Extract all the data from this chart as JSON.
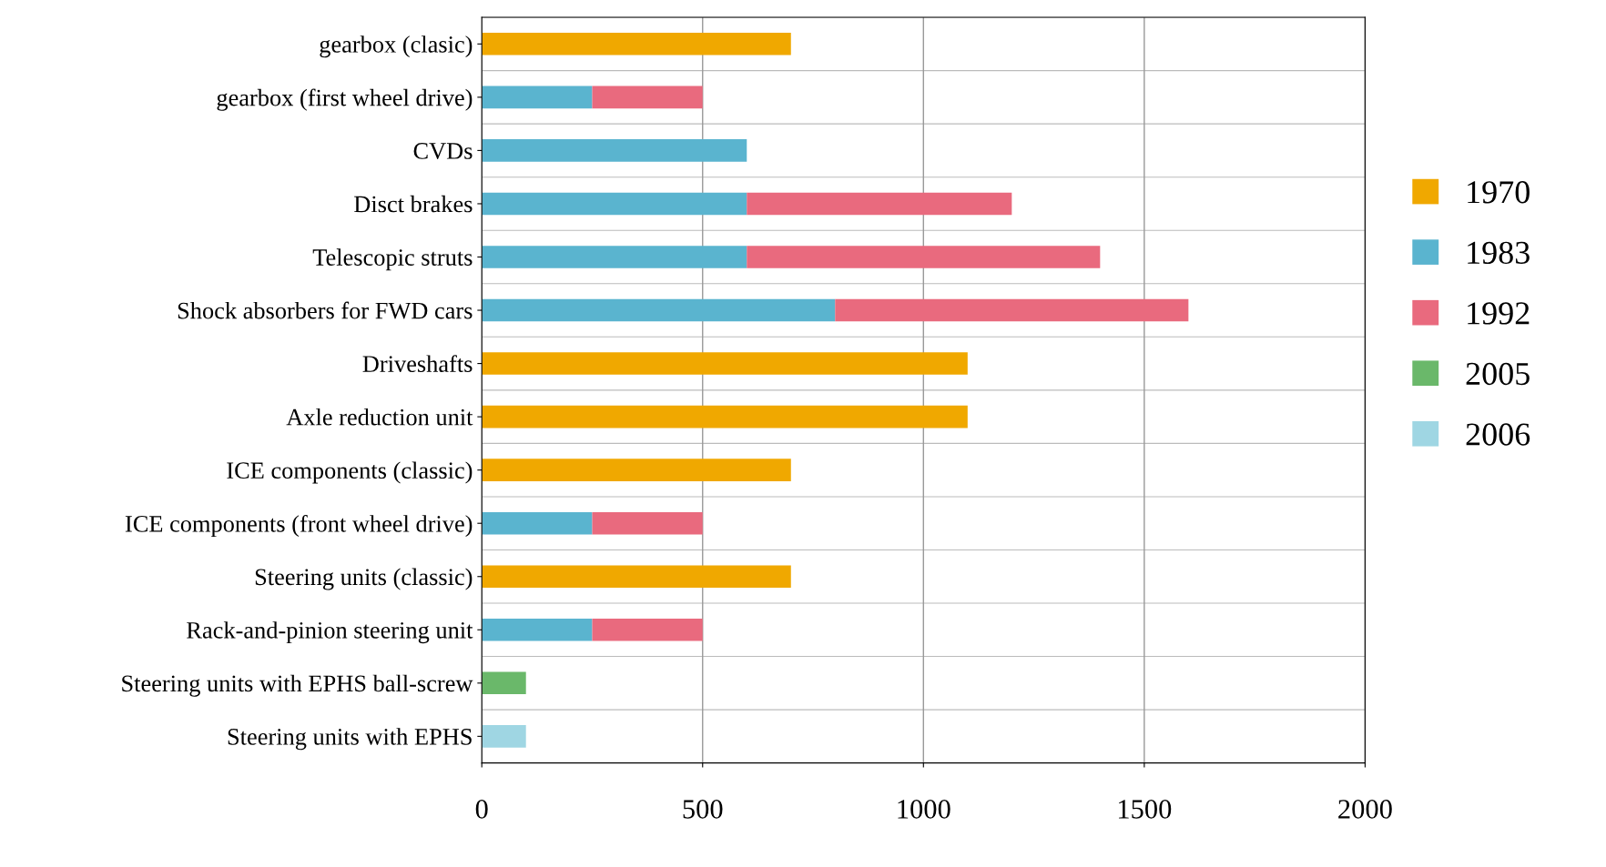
{
  "chart_data": {
    "type": "bar",
    "orientation": "horizontal",
    "stacked": true,
    "grid": "x",
    "legend": "right",
    "categories": [
      "gearbox (clasic)",
      "gearbox (first wheel drive)",
      "CVDs",
      "Disct brakes",
      "Telescopic struts",
      "Shock absorbers for FWD cars",
      "Driveshafts",
      "Axle reduction unit",
      "ICE components (classic)",
      "ICE components (front wheel drive)",
      "Steering units (classic)",
      "Rack-and-pinion steering unit",
      "Steering units with EPHS ball-screw",
      "Steering units with EPHS"
    ],
    "series": [
      {
        "name": "1970",
        "color": "#f0a800",
        "values": [
          700,
          null,
          null,
          null,
          null,
          null,
          1100,
          1100,
          700,
          null,
          700,
          null,
          null,
          null
        ]
      },
      {
        "name": "1983",
        "color": "#5ab4cf",
        "values": [
          null,
          250,
          600,
          600,
          600,
          800,
          null,
          null,
          null,
          250,
          null,
          250,
          null,
          null
        ]
      },
      {
        "name": "1992",
        "color": "#e96a7e",
        "values": [
          null,
          250,
          null,
          600,
          800,
          800,
          null,
          null,
          null,
          250,
          null,
          250,
          null,
          null
        ]
      },
      {
        "name": "2005",
        "color": "#6ab86a",
        "values": [
          null,
          null,
          null,
          null,
          null,
          null,
          null,
          null,
          null,
          null,
          null,
          null,
          100,
          null
        ]
      },
      {
        "name": "2006",
        "color": "#9fd6e3",
        "values": [
          null,
          null,
          null,
          null,
          null,
          null,
          null,
          null,
          null,
          null,
          null,
          null,
          null,
          100
        ]
      }
    ],
    "xlim": [
      0,
      2000
    ],
    "xticks": [
      0,
      500,
      1000,
      1500,
      2000
    ]
  }
}
